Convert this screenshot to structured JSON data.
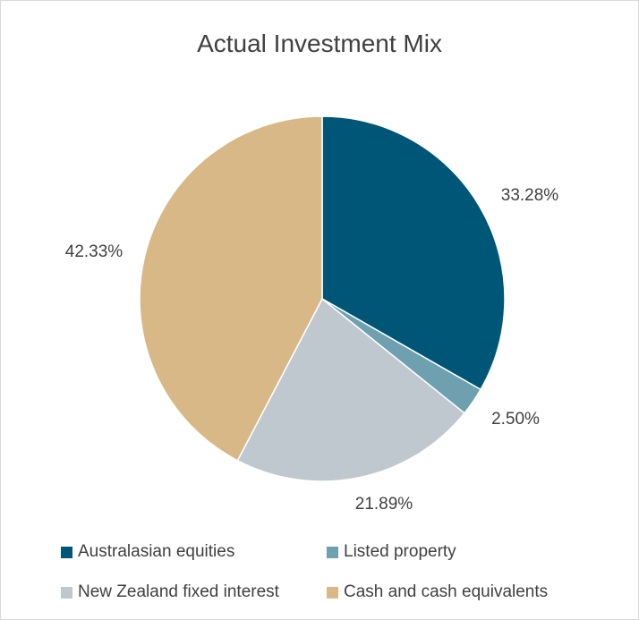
{
  "chart_data": {
    "type": "pie",
    "title": "Actual Investment Mix",
    "slices": [
      {
        "label": "Australasian equities",
        "value": 33.28,
        "value_label": "33.28%",
        "color": "#005677"
      },
      {
        "label": "Listed property",
        "value": 2.5,
        "value_label": "2.50%",
        "color": "#6fa0b0"
      },
      {
        "label": "New Zealand fixed interest",
        "value": 21.89,
        "value_label": "21.89%",
        "color": "#c0c8cf"
      },
      {
        "label": "Cash and cash equivalents",
        "value": 42.33,
        "value_label": "42.33%",
        "color": "#d7b886"
      }
    ],
    "start_angle": "12 o'clock",
    "direction": "clockwise",
    "legend_position": "bottom"
  }
}
